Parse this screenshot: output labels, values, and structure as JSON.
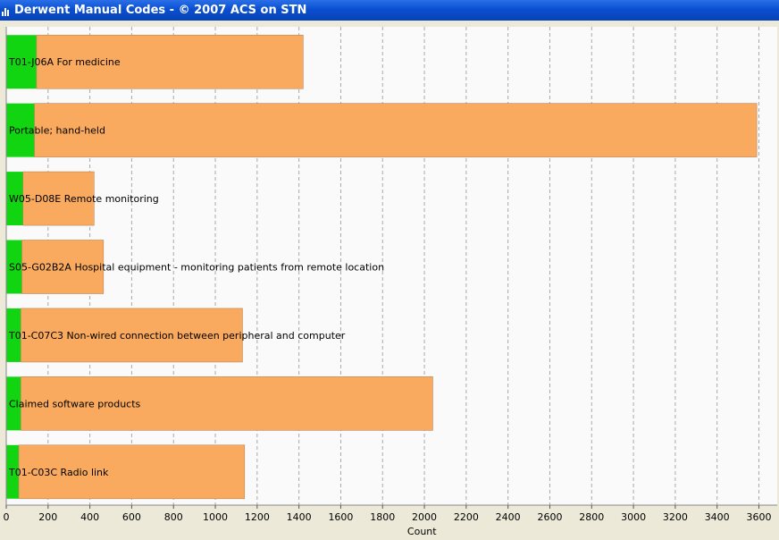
{
  "window": {
    "title": "Derwent Manual Codes - © 2007 ACS on STN"
  },
  "colors": {
    "secondary": "#f9aa5e",
    "primary": "#11d511",
    "grid": "#a8a8a8",
    "plot_bg": "#fafafa"
  },
  "chart_data": {
    "type": "bar",
    "orientation": "horizontal",
    "stacked": true,
    "xlabel": "Count",
    "xlim": [
      0,
      3600
    ],
    "xticks": [
      0,
      200,
      400,
      600,
      800,
      1000,
      1200,
      1400,
      1600,
      1800,
      2000,
      2200,
      2400,
      2600,
      2800,
      3000,
      3200,
      3400,
      3600
    ],
    "grid": true,
    "categories": [
      "T01-J06A For medicine",
      "Portable; hand-held",
      "W05-D08E Remote monitoring",
      "S05-G02B2A Hospital equipment - monitoring patients from remote location",
      "T01-C07C3 Non-wired connection between peripheral and computer",
      "Claimed software products",
      "T01-C03C Radio link"
    ],
    "series": [
      {
        "values": [
          145,
          135,
          80,
          75,
          70,
          70,
          60
        ]
      },
      {
        "values": [
          1275,
          3455,
          340,
          390,
          1060,
          1970,
          1080
        ]
      }
    ]
  }
}
